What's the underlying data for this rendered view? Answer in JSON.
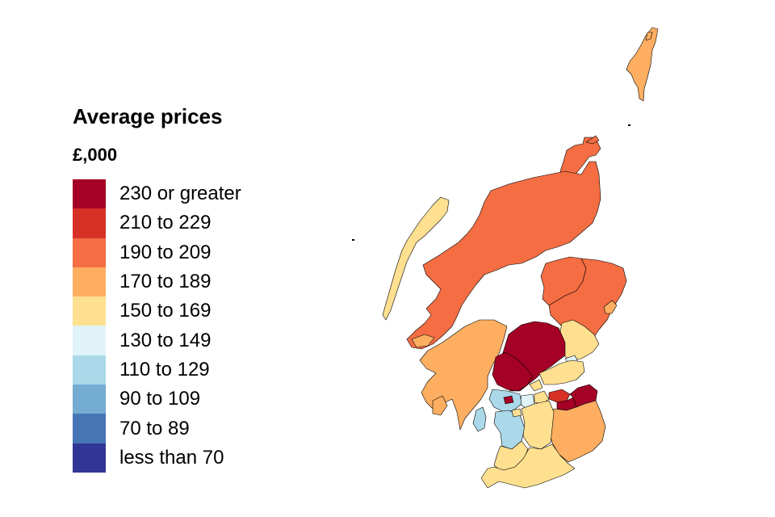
{
  "legend": {
    "title": "Average prices",
    "unit": "£,000",
    "items": [
      {
        "label": "230 or greater",
        "color": "#a50026"
      },
      {
        "label": "210 to 229",
        "color": "#d73027"
      },
      {
        "label": "190 to 209",
        "color": "#f46d43"
      },
      {
        "label": "170 to 189",
        "color": "#fdae61"
      },
      {
        "label": "150 to 169",
        "color": "#fee090"
      },
      {
        "label": "130 to 149",
        "color": "#e0f3f8"
      },
      {
        "label": "110 to 129",
        "color": "#abd9e9"
      },
      {
        "label": "90 to 109",
        "color": "#74add1"
      },
      {
        "label": "70 to 89",
        "color": "#4575b4"
      },
      {
        "label": "less than 70",
        "color": "#313695"
      }
    ]
  },
  "map": {
    "regions": [
      {
        "name": "shetland",
        "band": 3
      },
      {
        "name": "orkney",
        "band": 2
      },
      {
        "name": "outer-hebrides",
        "band": 4
      },
      {
        "name": "highland",
        "band": 2
      },
      {
        "name": "moray",
        "band": 2
      },
      {
        "name": "aberdeenshire",
        "band": 2
      },
      {
        "name": "aberdeen-city",
        "band": 3
      },
      {
        "name": "dundee",
        "band": 5
      },
      {
        "name": "angus",
        "band": 4
      },
      {
        "name": "argyll-and-bute",
        "band": 3
      },
      {
        "name": "perth-and-kinross",
        "band": 0
      },
      {
        "name": "stirling",
        "band": 0
      },
      {
        "name": "fife",
        "band": 4
      },
      {
        "name": "clackmannanshire",
        "band": 4
      },
      {
        "name": "edinburgh",
        "band": 1
      },
      {
        "name": "midlothian",
        "band": 0
      },
      {
        "name": "east-lothian",
        "band": 0
      },
      {
        "name": "west-lothian",
        "band": 4
      },
      {
        "name": "glasgow",
        "band": 6
      },
      {
        "name": "inverclyde",
        "band": 6
      },
      {
        "name": "north-ayrshire",
        "band": 6
      },
      {
        "name": "east-ayrshire",
        "band": 6
      },
      {
        "name": "south-ayrshire",
        "band": 4
      },
      {
        "name": "east-dunbartonshire",
        "band": 0
      },
      {
        "name": "east-renfrewshire",
        "band": 4
      },
      {
        "name": "north-lanarkshire",
        "band": 5
      },
      {
        "name": "south-lanarkshire",
        "band": 4
      },
      {
        "name": "scottish-borders",
        "band": 3
      },
      {
        "name": "dumfries-and-galloway",
        "band": 4
      },
      {
        "name": "arran",
        "band": 6
      }
    ]
  }
}
